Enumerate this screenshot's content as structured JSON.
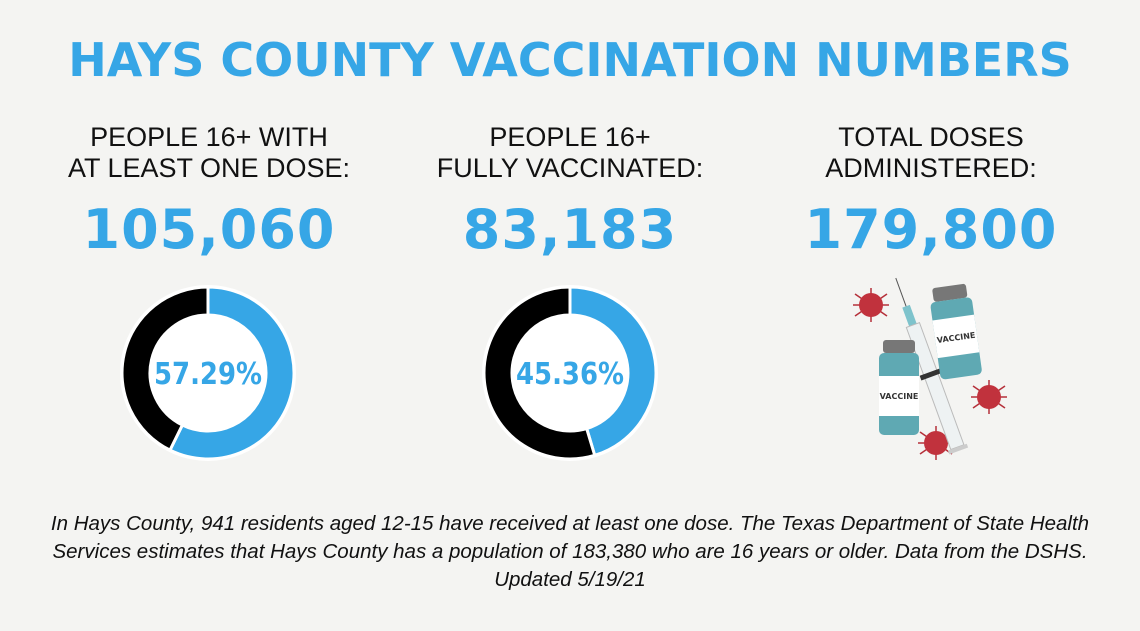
{
  "title": "HAYS COUNTY VACCINATION NUMBERS",
  "colors": {
    "accent": "#36a6e6",
    "remainder": "#000000",
    "background": "#f4f4f2"
  },
  "stats": [
    {
      "label": "PEOPLE  16+ WITH\nAT LEAST ONE DOSE:",
      "value": "105,060"
    },
    {
      "label": "PEOPLE 16+\nFULLY VACCINATED:",
      "value": "83,183"
    },
    {
      "label": "TOTAL DOSES\nADMINISTERED:",
      "value": "179,800"
    }
  ],
  "chart_data": [
    {
      "type": "pie",
      "style": "donut",
      "center_label": "57.29%",
      "values": [
        57.29,
        42.71
      ],
      "colors": [
        "#36a6e6",
        "#000000"
      ]
    },
    {
      "type": "pie",
      "style": "donut",
      "center_label": "45.36%",
      "values": [
        45.36,
        54.64
      ],
      "colors": [
        "#36a6e6",
        "#000000"
      ]
    }
  ],
  "illustration": {
    "vial_label": "VACCINE"
  },
  "footer": "In Hays County, 941 residents aged 12-15 have received at least one dose. The Texas Department of State Health Services estimates that Hays County has a population of 183,380 who are 16 years or older. Data from the DSHS. Updated 5/19/21"
}
